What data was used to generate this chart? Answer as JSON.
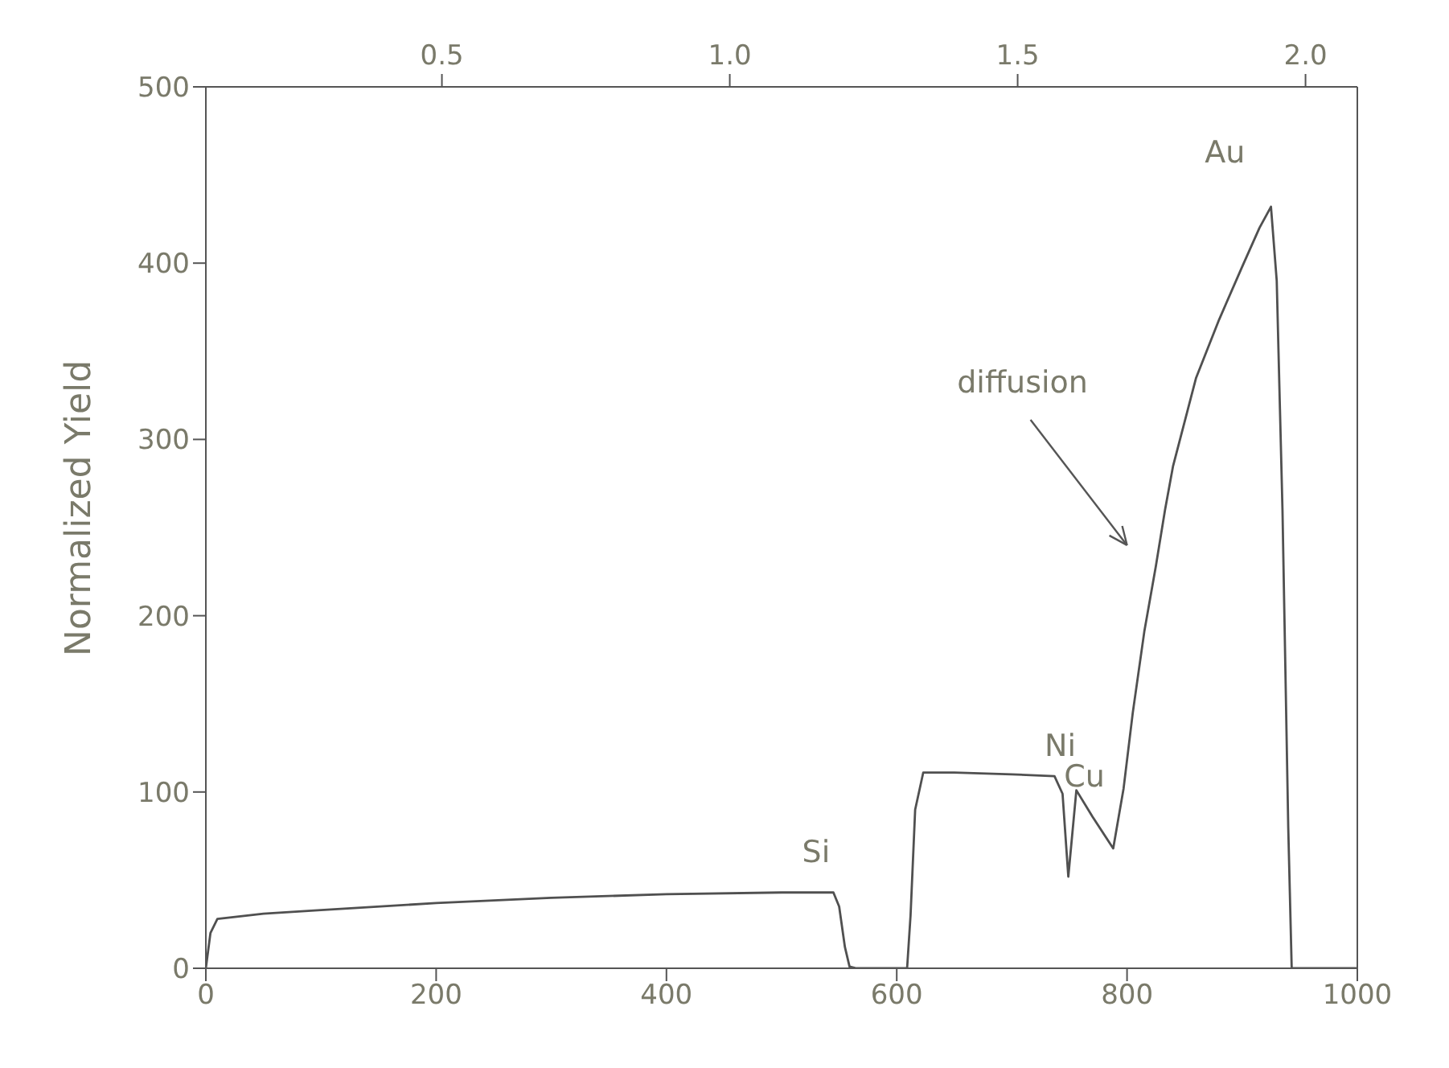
{
  "chart_data": {
    "type": "line",
    "ylabel": "Normalized Yield",
    "xlim": [
      0,
      1000
    ],
    "xticks": [
      0,
      200,
      400,
      600,
      800,
      1000
    ],
    "ylim": [
      0,
      500
    ],
    "yticks": [
      0,
      100,
      200,
      300,
      400,
      500
    ],
    "x2lim": [
      0.09,
      2.09
    ],
    "x2ticks": [
      {
        "value": 0.5,
        "label": "0.5"
      },
      {
        "value": 1.0,
        "label": "1.0"
      },
      {
        "value": 1.5,
        "label": "1.5"
      },
      {
        "value": 2.0,
        "label": "2.0"
      }
    ],
    "marker": "none",
    "line_style": "solid",
    "annotations": [
      "diffusion",
      "Si",
      "Ni",
      "Cu",
      "Au"
    ],
    "series": [
      {
        "color": "#505050",
        "x": [
          0,
          4,
          10,
          50,
          100,
          200,
          300,
          400,
          500,
          545,
          550,
          555,
          559,
          565,
          600,
          609,
          612,
          616,
          623,
          650,
          700,
          737,
          744,
          749,
          756,
          770,
          788,
          797,
          805,
          815,
          825,
          833,
          840,
          860,
          880,
          900,
          915,
          925,
          930,
          935,
          940,
          943,
          960,
          1000
        ],
        "values": [
          0,
          20,
          28,
          31,
          33,
          37,
          40,
          42,
          43,
          43,
          35,
          12,
          1,
          0,
          0,
          0,
          30,
          90,
          111,
          111,
          110,
          109,
          99,
          52,
          101,
          86,
          68,
          102,
          145,
          191,
          228,
          260,
          285,
          335,
          368,
          398,
          420,
          432,
          390,
          260,
          80,
          0,
          0,
          0
        ]
      }
    ]
  }
}
